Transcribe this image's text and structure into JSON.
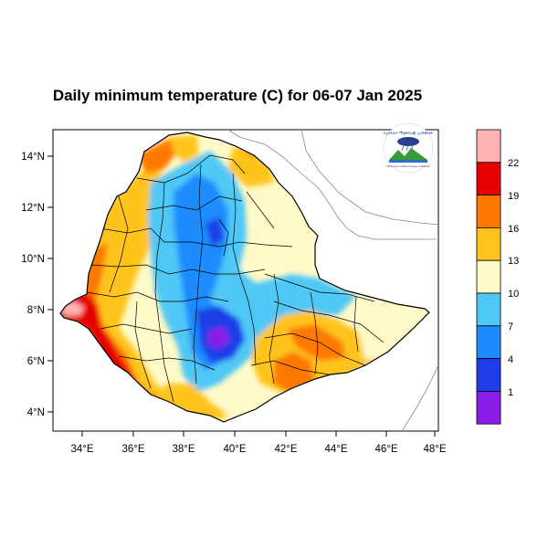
{
  "title": "Daily minimum temperature (C) for 06-07 Jan 2025",
  "map": {
    "lon_ticks": [
      "34°E",
      "36°E",
      "38°E",
      "40°E",
      "42°E",
      "44°E",
      "46°E",
      "48°E"
    ],
    "lat_ticks": [
      "4°N",
      "6°N",
      "8°N",
      "10°N",
      "12°N",
      "14°N"
    ],
    "lon_range": [
      33,
      48.2
    ],
    "lat_range": [
      3.2,
      15.0
    ]
  },
  "colorbar": {
    "labels": [
      "1",
      "4",
      "7",
      "10",
      "13",
      "16",
      "19",
      "22"
    ],
    "colors": [
      "#8a1ee8",
      "#1e3ce8",
      "#1e8cff",
      "#50c8f5",
      "#fffac8",
      "#ffc41e",
      "#ff7800",
      "#e60000",
      "#ffb4b4"
    ]
  },
  "logo": {
    "top_text": "የኢትዮጵያ ሚቲዎሮሎጂ ኢንስቲትዩት",
    "bottom_text": "Ethiopian Meteorology Institute"
  }
}
